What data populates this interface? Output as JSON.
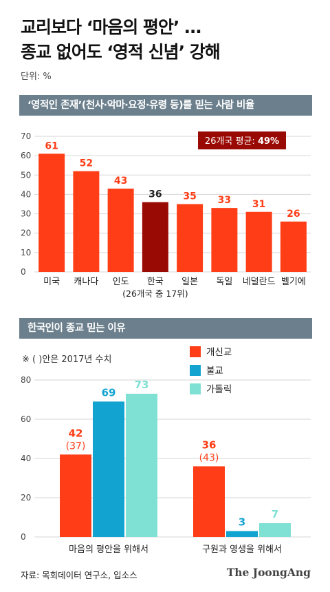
{
  "headline": {
    "line1": "교리보다 ‘마음의 평안’ …",
    "line2": "종교 없어도 ‘영적 신념’ 강해"
  },
  "unit": "단위: %",
  "colors": {
    "orange": "#ff3d16",
    "dark_red": "#9a0a04",
    "blue": "#13a3d0",
    "mint": "#7fe0d4",
    "section": "#6b7f8c"
  },
  "chart_data": [
    {
      "type": "bar",
      "title": "‘영적인 존재’(천사·악마·요정·유령 등)를 믿는 사람 비율",
      "categories": [
        "미국",
        "캐나다",
        "인도",
        "한국",
        "일본",
        "독일",
        "네덜란드",
        "벨기에"
      ],
      "values": [
        61,
        52,
        43,
        36,
        35,
        33,
        31,
        26
      ],
      "highlight": "한국",
      "highlight_note": "(26개국 중 17위)",
      "annotation": {
        "label": "26개국 평균: ",
        "value": "49%"
      },
      "ylim": [
        0,
        70
      ],
      "yticks": [
        0,
        10,
        20,
        30,
        40,
        50,
        60,
        70
      ],
      "grid": true
    },
    {
      "type": "bar",
      "title": "한국인이 종교 믿는 이유",
      "note": "※ ( )안은 2017년 수치",
      "categories": [
        "마음의 평안을 위해서",
        "구원과 영생을 위해서"
      ],
      "series": [
        {
          "name": "개신교",
          "values": [
            42,
            36
          ],
          "values_2017": [
            37,
            43
          ]
        },
        {
          "name": "불교",
          "values": [
            69,
            3
          ]
        },
        {
          "name": "가톨릭",
          "values": [
            73,
            7
          ]
        }
      ],
      "ylim": [
        0,
        80
      ],
      "yticks": [
        0,
        20,
        40,
        60,
        80
      ],
      "grid": true,
      "legend": "top-right"
    }
  ],
  "footer": {
    "source": "자료: 목회데이터 연구소, 입소스",
    "logo": "The JoongAng"
  }
}
